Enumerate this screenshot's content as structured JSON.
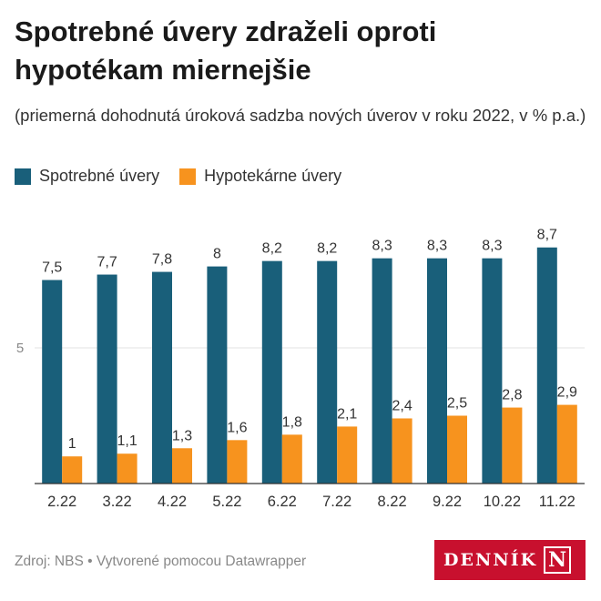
{
  "title": "Spotrebné úvery zdraželi oproti hypotékam miernejšie",
  "subtitle": "(priemerná dohodnutá úroková sadzba nových úverov v roku 2022, v % p.a.)",
  "legend": [
    {
      "label": "Spotrebné úvery",
      "color": "#195f7a"
    },
    {
      "label": "Hypotekárne úvery",
      "color": "#f7931e"
    }
  ],
  "chart_data": {
    "type": "bar",
    "title": "Spotrebné úvery zdraželi oproti hypotékam miernejšie",
    "subtitle": "(priemerná dohodnutá úroková sadzba nových úverov v roku 2022, v % p.a.)",
    "categories": [
      "2.22",
      "3.22",
      "4.22",
      "5.22",
      "6.22",
      "7.22",
      "8.22",
      "9.22",
      "10.22",
      "11.22"
    ],
    "series": [
      {
        "name": "Spotrebné úvery",
        "color": "#195f7a",
        "values": [
          7.5,
          7.7,
          7.8,
          8,
          8.2,
          8.2,
          8.3,
          8.3,
          8.3,
          8.7
        ],
        "labels": [
          "7,5",
          "7,7",
          "7,8",
          "8",
          "8,2",
          "8,2",
          "8,3",
          "8,3",
          "8,3",
          "8,7"
        ]
      },
      {
        "name": "Hypotekárne úvery",
        "color": "#f7931e",
        "values": [
          1,
          1.1,
          1.3,
          1.6,
          1.8,
          2.1,
          2.4,
          2.5,
          2.8,
          2.9
        ],
        "labels": [
          "1",
          "1,1",
          "1,3",
          "1,6",
          "1,8",
          "2,1",
          "2,4",
          "2,5",
          "2,8",
          "2,9"
        ]
      }
    ],
    "y_ticks": [
      {
        "value": 5,
        "label": "5"
      }
    ],
    "ylim": [
      0,
      10
    ],
    "xlabel": "",
    "ylabel": "",
    "grid": true,
    "legend_position": "top-left"
  },
  "footer": {
    "source": "Zdroj: NBS • Vytvorené pomocou Datawrapper"
  },
  "logo": {
    "text": "DENNÍK",
    "mark": "N"
  }
}
